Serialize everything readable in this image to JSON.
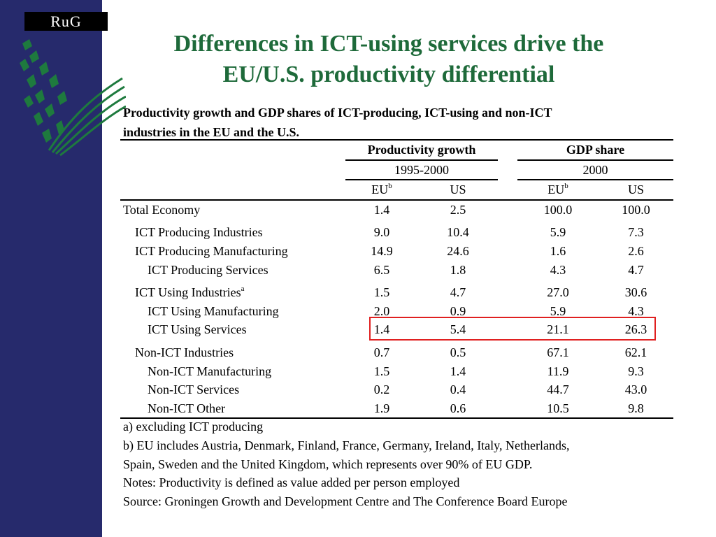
{
  "brand": {
    "logo_text": "RuG",
    "sidebar_color": "#262a6c",
    "logo_leaf_color": "#1e7a3e"
  },
  "slide": {
    "title_line1": "Differences in ICT-using services drive the",
    "title_line2": "EU/U.S. productivity differential",
    "title_color": "#1e6a3a"
  },
  "table": {
    "caption_line1": "Productivity growth and GDP shares of ICT-producing, ICT-using and non-ICT",
    "caption_line2": "industries in the EU and the U.S.",
    "group_headers": {
      "productivity": "Productivity growth",
      "gdp": "GDP share"
    },
    "periods": {
      "productivity": "1995-2000",
      "gdp": "2000"
    },
    "columns": {
      "eu": "EU",
      "eu_note": "b",
      "us": "US"
    },
    "rows": [
      {
        "label": "Total Economy",
        "note": "",
        "pg_eu": "1.4",
        "pg_us": "2.5",
        "gdp_eu": "100.0",
        "gdp_us": "100.0"
      },
      {
        "label": "ICT Producing Industries",
        "note": "",
        "pg_eu": "9.0",
        "pg_us": "10.4",
        "gdp_eu": "5.9",
        "gdp_us": "7.3"
      },
      {
        "label": "ICT Producing Manufacturing",
        "note": "",
        "pg_eu": "14.9",
        "pg_us": "24.6",
        "gdp_eu": "1.6",
        "gdp_us": "2.6"
      },
      {
        "label": "ICT Producing Services",
        "note": "",
        "pg_eu": "6.5",
        "pg_us": "1.8",
        "gdp_eu": "4.3",
        "gdp_us": "4.7"
      },
      {
        "label": "ICT Using Industries",
        "note": "a",
        "pg_eu": "1.5",
        "pg_us": "4.7",
        "gdp_eu": "27.0",
        "gdp_us": "30.6"
      },
      {
        "label": "ICT Using Manufacturing",
        "note": "",
        "pg_eu": "2.0",
        "pg_us": "0.9",
        "gdp_eu": "5.9",
        "gdp_us": "4.3"
      },
      {
        "label": "ICT Using Services",
        "note": "",
        "pg_eu": "1.4",
        "pg_us": "5.4",
        "gdp_eu": "21.1",
        "gdp_us": "26.3"
      },
      {
        "label": "Non-ICT Industries",
        "note": "",
        "pg_eu": "0.7",
        "pg_us": "0.5",
        "gdp_eu": "67.1",
        "gdp_us": "62.1"
      },
      {
        "label": "Non-ICT Manufacturing",
        "note": "",
        "pg_eu": "1.5",
        "pg_us": "1.4",
        "gdp_eu": "11.9",
        "gdp_us": "9.3"
      },
      {
        "label": "Non-ICT Services",
        "note": "",
        "pg_eu": "0.2",
        "pg_us": "0.4",
        "gdp_eu": "44.7",
        "gdp_us": "43.0"
      },
      {
        "label": "Non-ICT Other",
        "note": "",
        "pg_eu": "1.9",
        "pg_us": "0.6",
        "gdp_eu": "10.5",
        "gdp_us": "9.8"
      }
    ],
    "highlight_color": "#e02020"
  },
  "notes": [
    "a) excluding ICT producing",
    "b) EU includes Austria, Denmark, Finland, France, Germany, Ireland, Italy, Netherlands,",
    "Spain, Sweden and the United Kingdom, which represents over 90% of EU GDP.",
    "Notes: Productivity is defined as value added per person employed",
    "Source: Groningen Growth and Development Centre and The Conference Board Europe"
  ]
}
